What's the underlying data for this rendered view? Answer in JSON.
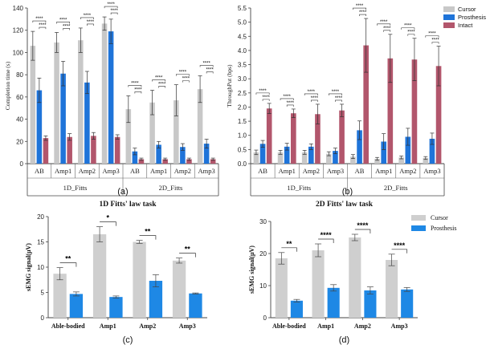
{
  "colors": {
    "cursor": "#c8c8c8",
    "prosthesis": "#1f74d9",
    "intact": "#b2566c",
    "cursor_b": "#cfcfcf",
    "prosthesis_b": "#1e88e5"
  },
  "chart_data": [
    {
      "id": "a",
      "type": "bar",
      "panel_label": "(a)",
      "ylabel": "Completion time (s)",
      "ylim": [
        0,
        140
      ],
      "yticks": [
        "0",
        "20",
        "40",
        "60",
        "80",
        "100",
        "120",
        "140"
      ],
      "categories": [
        "AB",
        "Amp1",
        "Amp2",
        "Amp3",
        "AB",
        "Amp1",
        "Amp2",
        "Amp3"
      ],
      "groups": [
        "1D_Fitts",
        "2D_Fitts"
      ],
      "series": [
        {
          "name": "Cursor",
          "values": [
            106,
            109,
            111,
            126,
            49,
            55,
            57,
            67
          ],
          "err": [
            13,
            9,
            11,
            6,
            12,
            11,
            14,
            12
          ]
        },
        {
          "name": "Prosthesis",
          "values": [
            66,
            81,
            73,
            119,
            11,
            17,
            15,
            18
          ],
          "err": [
            11,
            11,
            10,
            11,
            3,
            3,
            3,
            4
          ]
        },
        {
          "name": "Intact",
          "values": [
            23,
            24,
            25,
            24,
            4,
            4,
            4,
            4
          ],
          "err": [
            2,
            3,
            3,
            2,
            1,
            1,
            1,
            1
          ]
        }
      ],
      "significance": "****"
    },
    {
      "id": "b",
      "type": "bar",
      "panel_label": "(b)",
      "ylabel": "ThroughPut (bps)",
      "ylim": [
        0,
        5.5
      ],
      "yticks": [
        "0.0",
        "0.5",
        "1.0",
        "1.5",
        "2.0",
        "2.5",
        "3.0",
        "3.5",
        "4.0",
        "4.5",
        "5.0",
        "5.5"
      ],
      "categories": [
        "AB",
        "Amp1",
        "Amp2",
        "Amp3",
        "AB",
        "Amp1",
        "Amp2",
        "Amp3"
      ],
      "groups": [
        "1D_Fitts",
        "2D_Fitts"
      ],
      "series": [
        {
          "name": "Cursor",
          "values": [
            0.4,
            0.4,
            0.4,
            0.35,
            0.25,
            0.17,
            0.22,
            0.2
          ],
          "err": [
            0.08,
            0.07,
            0.07,
            0.07,
            0.07,
            0.05,
            0.05,
            0.05
          ]
        },
        {
          "name": "Prosthesis",
          "values": [
            0.7,
            0.6,
            0.6,
            0.45,
            1.18,
            0.78,
            0.95,
            0.88
          ],
          "err": [
            0.12,
            0.12,
            0.1,
            0.1,
            0.33,
            0.28,
            0.3,
            0.2
          ]
        },
        {
          "name": "Intact",
          "values": [
            1.95,
            1.78,
            1.75,
            1.88,
            4.18,
            3.72,
            3.68,
            3.45
          ],
          "err": [
            0.18,
            0.15,
            0.35,
            0.22,
            0.95,
            0.85,
            0.75,
            0.7
          ]
        }
      ],
      "significance": "****",
      "legend": [
        "Cursor",
        "Prosthesis",
        "Intact"
      ]
    },
    {
      "id": "c",
      "type": "bar",
      "panel_label": "(c)",
      "title": "1D Fitts' law task",
      "ylabel": "sEMG signal(μV)",
      "ylim": [
        0,
        20
      ],
      "yticks": [
        "0",
        "5",
        "10",
        "15",
        "20"
      ],
      "categories": [
        "Able-bodied",
        "Amp1",
        "Amp2",
        "Amp3"
      ],
      "series": [
        {
          "name": "Cursor",
          "values": [
            8.7,
            16.5,
            15.0,
            11.3
          ],
          "err": [
            1.2,
            1.5,
            0.3,
            0.5
          ]
        },
        {
          "name": "Prosthesis",
          "values": [
            4.7,
            4.1,
            7.3,
            4.8
          ],
          "err": [
            0.4,
            0.2,
            1.2,
            0.1
          ]
        }
      ],
      "significance": [
        "**",
        "*",
        "**",
        "**"
      ]
    },
    {
      "id": "d",
      "type": "bar",
      "panel_label": "(d)",
      "title": "2D Fitts' law task",
      "ylabel": "sEMG signal(μV)",
      "ylim": [
        0,
        30
      ],
      "yticks": [
        "0",
        "10",
        "20",
        "30"
      ],
      "categories": [
        "Able-bodied",
        "Amp1",
        "Amp2",
        "Amp3"
      ],
      "series": [
        {
          "name": "Cursor",
          "values": [
            18.5,
            21.0,
            25.0,
            18.0
          ],
          "err": [
            1.8,
            2.0,
            1.0,
            1.8
          ]
        },
        {
          "name": "Prosthesis",
          "values": [
            5.3,
            9.3,
            8.5,
            8.8
          ],
          "err": [
            0.4,
            1.0,
            1.1,
            0.6
          ]
        }
      ],
      "significance": [
        "**",
        "****",
        "****",
        "****"
      ],
      "legend": [
        "Cursor",
        "Prosthesis"
      ]
    }
  ]
}
